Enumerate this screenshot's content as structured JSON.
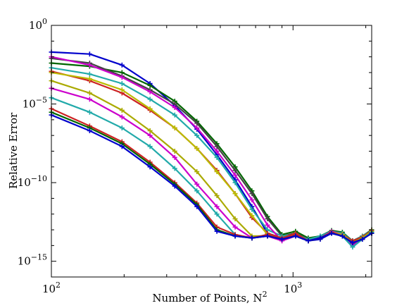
{
  "chart_data": {
    "type": "line",
    "xlabel": "Number of Points, N",
    "xlabel_sup": "2",
    "ylabel": "Relative Error",
    "xscale": "log",
    "yscale": "log",
    "xlim": [
      100,
      2116
    ],
    "ylim": [
      1e-16,
      1
    ],
    "grid": false,
    "legend": "none",
    "x_ticks": [
      {
        "value": 100,
        "base": "10",
        "exp": "2"
      },
      {
        "value": 1000,
        "base": "10",
        "exp": "3"
      }
    ],
    "y_ticks": [
      {
        "value": 1,
        "base": "10",
        "exp": "0"
      },
      {
        "value": 1e-05,
        "base": "10",
        "exp": "−5"
      },
      {
        "value": 1e-10,
        "base": "10",
        "exp": "−10"
      },
      {
        "value": 1e-15,
        "base": "10",
        "exp": "−15"
      }
    ],
    "x": [
      100,
      144,
      196,
      256,
      324,
      400,
      484,
      576,
      676,
      784,
      900,
      1024,
      1156,
      1296,
      1444,
      1600,
      1764,
      1936,
      2116
    ],
    "series": [
      {
        "color": "#0000cc",
        "marker": "plus",
        "values": [
          0.02,
          0.015,
          0.003,
          0.0002,
          8e-06,
          2.5e-07,
          6e-09,
          1.5e-10,
          3e-12,
          6e-14,
          3e-14,
          5e-14,
          2e-14,
          2.5e-14,
          6e-14,
          5e-14,
          1.2e-14,
          3e-14,
          8e-14
        ]
      },
      {
        "color": "#006600",
        "marker": "plus",
        "values": [
          0.004,
          0.0025,
          0.001,
          0.00015,
          1.5e-05,
          8e-07,
          3e-08,
          1e-09,
          3e-11,
          7e-13,
          5e-14,
          8e-14,
          3e-14,
          4e-14,
          9e-14,
          7e-14,
          2e-14,
          4e-14,
          1e-13
        ]
      },
      {
        "color": "#444444",
        "marker": "plus",
        "values": [
          0.008,
          0.004,
          0.0006,
          8e-05,
          1e-05,
          6e-07,
          2e-08,
          6e-10,
          2e-11,
          5e-13,
          4e-14,
          6e-14,
          2.5e-14,
          3.5e-14,
          7e-14,
          6e-14,
          1.5e-14,
          3.5e-14,
          9e-14
        ]
      },
      {
        "color": "#22aaaa",
        "marker": "plus",
        "values": [
          0.002,
          0.0008,
          0.0002,
          2e-05,
          2e-06,
          1e-07,
          4e-09,
          1e-10,
          2e-12,
          1e-13,
          4e-14,
          5e-14,
          2.5e-14,
          4e-14,
          8e-14,
          6e-14,
          2e-14,
          4e-14,
          9e-14
        ]
      },
      {
        "color": "#cc00cc",
        "marker": "plus",
        "values": [
          0.01,
          0.003,
          0.0005,
          6e-05,
          6e-06,
          3e-07,
          1e-08,
          3e-10,
          8e-12,
          2e-13,
          2e-14,
          5e-14,
          2e-14,
          3e-14,
          8e-14,
          5e-14,
          1e-14,
          3e-14,
          8e-14
        ]
      },
      {
        "color": "#cc2222",
        "marker": "plus",
        "values": [
          0.0012,
          0.0003,
          5e-05,
          4e-06,
          3e-07,
          1.5e-08,
          6e-10,
          2e-11,
          6e-13,
          6e-14,
          3e-14,
          6e-14,
          2e-14,
          3e-14,
          7e-14,
          5e-14,
          2e-14,
          3.5e-14,
          9e-14
        ]
      },
      {
        "color": "#bbbb00",
        "marker": "plus",
        "values": [
          0.001,
          0.0004,
          8e-05,
          5e-06,
          3e-07,
          1.5e-08,
          5e-10,
          2e-11,
          8e-13,
          5e-14,
          3e-14,
          5e-14,
          2e-14,
          3e-14,
          7e-14,
          5e-14,
          1.5e-14,
          3e-14,
          8e-14
        ]
      },
      {
        "color": "#aaaa00",
        "marker": "plus",
        "values": [
          0.0003,
          5e-05,
          4e-06,
          2e-07,
          1e-08,
          5e-10,
          1.5e-11,
          5e-13,
          4e-14,
          4e-14,
          3e-14,
          4e-14,
          2e-14,
          3e-14,
          7e-14,
          4e-14,
          1.5e-14,
          3e-14,
          8e-14
        ]
      },
      {
        "color": "#cc00cc",
        "marker": "plus",
        "values": [
          0.0001,
          2e-05,
          1.5e-06,
          1e-07,
          4e-09,
          8e-11,
          3e-12,
          1.5e-13,
          3e-14,
          4e-14,
          2e-14,
          4e-14,
          2e-14,
          3e-14,
          6e-14,
          4e-14,
          1.5e-14,
          2.5e-14,
          6e-14
        ]
      },
      {
        "color": "#22aaaa",
        "marker": "plus",
        "values": [
          2.5e-05,
          3e-06,
          3e-07,
          2e-08,
          8e-10,
          3e-11,
          1e-12,
          5e-14,
          3e-14,
          5e-14,
          3e-14,
          5e-14,
          2e-14,
          3e-14,
          7e-14,
          4e-14,
          8e-15,
          2.5e-14,
          7e-14
        ]
      },
      {
        "color": "#cc2222",
        "marker": "plus",
        "values": [
          5e-06,
          4e-07,
          4e-08,
          2e-09,
          1e-10,
          5e-12,
          1.5e-13,
          5e-14,
          3e-14,
          5e-14,
          3e-14,
          5e-14,
          2e-14,
          3e-14,
          7e-14,
          4e-14,
          1.5e-14,
          2.5e-14,
          6e-14
        ]
      },
      {
        "color": "#006600",
        "marker": "plus",
        "values": [
          3e-06,
          3e-07,
          3e-08,
          1.5e-09,
          8e-11,
          4e-12,
          1e-13,
          4e-14,
          3e-14,
          4e-14,
          2.5e-14,
          4e-14,
          2e-14,
          3e-14,
          6e-14,
          4e-14,
          1.5e-14,
          2.5e-14,
          6e-14
        ]
      },
      {
        "color": "#0000cc",
        "marker": "plus",
        "values": [
          2e-06,
          2e-07,
          2e-08,
          1e-09,
          6e-11,
          3e-12,
          8e-14,
          4e-14,
          3e-14,
          4e-14,
          2.5e-14,
          4e-14,
          2e-14,
          3e-14,
          6e-14,
          4e-14,
          1.5e-14,
          2.5e-14,
          6e-14
        ]
      }
    ]
  }
}
